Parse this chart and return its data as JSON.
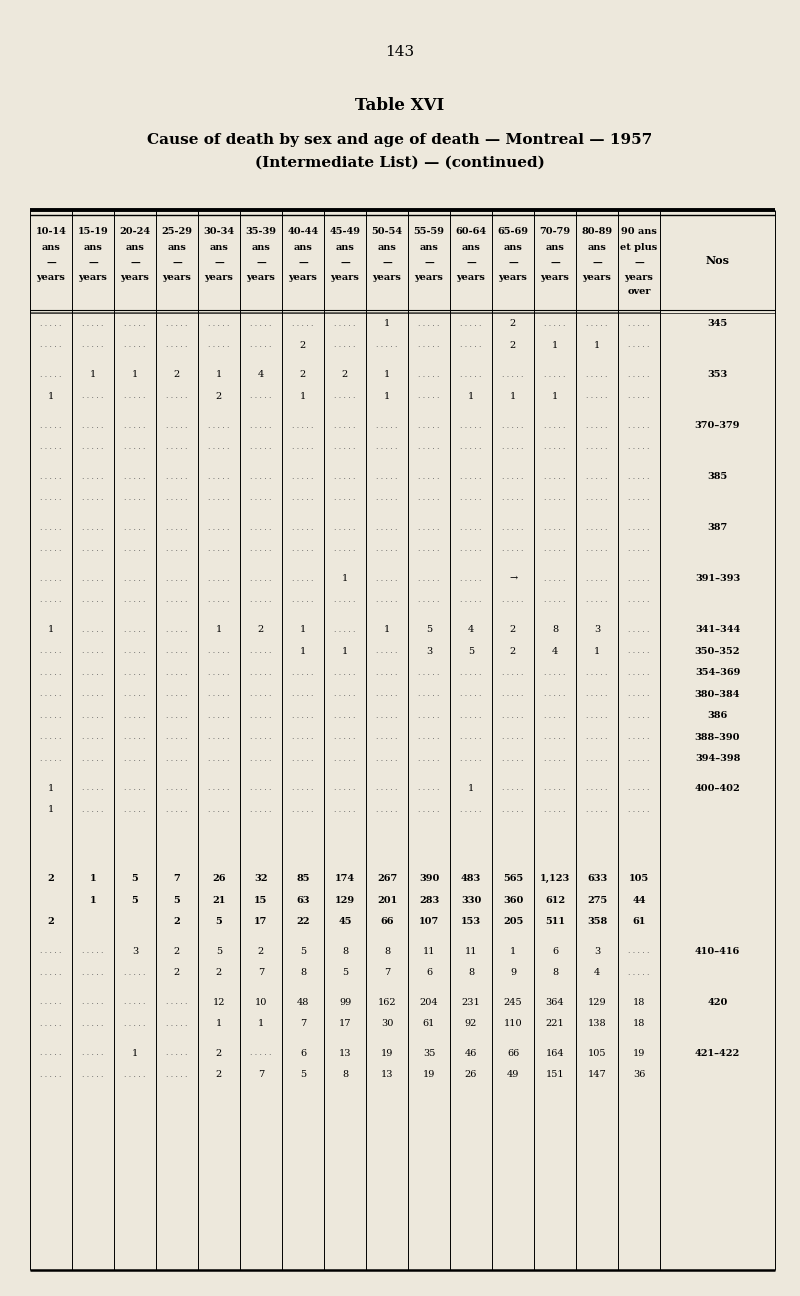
{
  "page_number": "143",
  "title1": "Table XVI",
  "title2": "Cause of death by sex and age of death — Montreal — 1957",
  "title3": "(Intermediate List) — (continued)",
  "bg_color": "#ede8dc",
  "col_headers": [
    [
      "10-14",
      "ans",
      "—",
      "years"
    ],
    [
      "15-19",
      "ans",
      "—",
      "years"
    ],
    [
      "20-24",
      "ans",
      "—",
      "years"
    ],
    [
      "25-29",
      "ans",
      "—",
      "years"
    ],
    [
      "30-34",
      "ans",
      "—",
      "years"
    ],
    [
      "35-39",
      "ans",
      "—",
      "years"
    ],
    [
      "40-44",
      "ans",
      "—",
      "years"
    ],
    [
      "45-49",
      "ans",
      "—",
      "years"
    ],
    [
      "50-54",
      "ans",
      "—",
      "years"
    ],
    [
      "55-59",
      "ans",
      "—",
      "years"
    ],
    [
      "60-64",
      "ans",
      "—",
      "years"
    ],
    [
      "65-69",
      "ans",
      "—",
      "years"
    ],
    [
      "70-79",
      "ans",
      "—",
      "years"
    ],
    [
      "80-89",
      "ans",
      "—",
      "years"
    ],
    [
      "90 ans",
      "et plus",
      "—",
      "years",
      "over"
    ]
  ],
  "rows": [
    {
      "d": [
        "",
        "",
        "",
        "",
        "",
        "",
        "",
        "",
        "1",
        "",
        "",
        "2",
        "",
        "",
        ""
      ],
      "nos": "345",
      "dots": true
    },
    {
      "d": [
        "",
        "",
        "",
        "",
        "",
        "",
        "2",
        "",
        "",
        "",
        "",
        "2",
        "1",
        "1",
        ""
      ],
      "nos": "",
      "dots": true
    },
    {
      "d": [
        "",
        "1",
        "1",
        "2",
        "1",
        "4",
        "2",
        "2",
        "1",
        "",
        "",
        "",
        "",
        "",
        ""
      ],
      "nos": "353",
      "dots": true
    },
    {
      "d": [
        "1",
        "",
        "",
        "",
        "2",
        "",
        "1",
        "",
        "1",
        "",
        "1",
        "1",
        "1",
        "",
        ""
      ],
      "nos": "",
      "dots": true
    },
    {
      "d": [
        "",
        "",
        "",
        "",
        "",
        "",
        "",
        "",
        "",
        "",
        "",
        "",
        "",
        "",
        ""
      ],
      "nos": "370–379",
      "dots": true
    },
    {
      "d": [
        "",
        "",
        "",
        "",
        "",
        "",
        "",
        "",
        "",
        "",
        "",
        "",
        "",
        "",
        ""
      ],
      "nos": "",
      "dots": true
    },
    {
      "d": [
        "",
        "",
        "",
        "",
        "",
        "",
        "",
        "",
        "",
        "",
        "",
        "",
        "",
        "",
        ""
      ],
      "nos": "385",
      "dots": true
    },
    {
      "d": [
        "",
        "",
        "",
        "",
        "",
        "",
        "",
        "",
        "",
        "",
        "",
        "",
        "",
        "",
        ""
      ],
      "nos": "",
      "dots": true
    },
    {
      "d": [
        "",
        "",
        "",
        "",
        "",
        "",
        "",
        "",
        "",
        "",
        "",
        "",
        "",
        "",
        ""
      ],
      "nos": "387",
      "dots": true
    },
    {
      "d": [
        "",
        "",
        "",
        "",
        "",
        "",
        "",
        "",
        "",
        "",
        "",
        "",
        "",
        "",
        ""
      ],
      "nos": "",
      "dots": true
    },
    {
      "d": [
        "",
        "",
        "",
        "",
        "",
        "",
        "",
        "1",
        "",
        "",
        "",
        "→",
        "",
        "",
        ""
      ],
      "nos": "391–393",
      "dots": true
    },
    {
      "d": [
        "",
        "",
        "",
        "",
        "",
        "",
        "",
        "",
        "",
        "",
        "",
        "",
        "",
        "",
        ""
      ],
      "nos": "",
      "dots": true
    },
    {
      "d": [
        "1",
        "",
        "",
        "",
        "1",
        "2",
        "1",
        "",
        "1",
        "5",
        "4",
        "2",
        "8",
        "3",
        ""
      ],
      "nos": "341–344",
      "dots": true
    },
    {
      "d": [
        "",
        "",
        "",
        "",
        "",
        "",
        "1",
        "1",
        "",
        "3",
        "5",
        "2",
        "4",
        "1",
        ""
      ],
      "nos": "350–352",
      "dots": true
    },
    {
      "d": [
        "",
        "",
        "",
        "",
        "",
        "",
        "",
        "",
        "",
        "",
        "",
        "",
        "",
        "",
        ""
      ],
      "nos": "354–369",
      "dots": true
    },
    {
      "d": [
        "",
        "",
        "",
        "",
        "",
        "",
        "",
        "",
        "",
        "",
        "",
        "",
        "",
        "",
        ""
      ],
      "nos": "380–384",
      "dots": true
    },
    {
      "d": [
        "",
        "",
        "",
        "",
        "",
        "",
        "",
        "",
        "",
        "",
        "",
        "",
        "",
        "",
        ""
      ],
      "nos": "386",
      "dots": true
    },
    {
      "d": [
        "",
        "",
        "",
        "",
        "",
        "",
        "",
        "",
        "",
        "",
        "",
        "",
        "",
        "",
        ""
      ],
      "nos": "388–390",
      "dots": true
    },
    {
      "d": [
        "",
        "",
        "",
        "",
        "",
        "",
        "",
        "",
        "",
        "",
        "",
        "",
        "",
        "",
        ""
      ],
      "nos": "394–398",
      "dots": true
    },
    {
      "d": [
        "1",
        "",
        "",
        "",
        "",
        "",
        "",
        "",
        "",
        "",
        "1",
        "",
        "",
        "",
        ""
      ],
      "nos": "400–402",
      "dots": true
    },
    {
      "d": [
        "1",
        "",
        "",
        "",
        "",
        "",
        "",
        "",
        "",
        "",
        "",
        "",
        "",
        "",
        ""
      ],
      "nos": "",
      "dots": true
    },
    {
      "d": [
        "",
        "",
        "",
        "",
        "",
        "",
        "",
        "",
        "",
        "",
        "",
        "",
        "",
        "",
        ""
      ],
      "nos": "",
      "dots": false
    },
    {
      "d": [
        "2",
        "1",
        "5",
        "7",
        "26",
        "32",
        "85",
        "174",
        "267",
        "390",
        "483",
        "565",
        "1,123",
        "633",
        "105"
      ],
      "nos": "",
      "dots": false
    },
    {
      "d": [
        "",
        "1",
        "5",
        "5",
        "21",
        "15",
        "63",
        "129",
        "201",
        "283",
        "330",
        "360",
        "612",
        "275",
        "44"
      ],
      "nos": "",
      "dots": false
    },
    {
      "d": [
        "2",
        "",
        "",
        "2",
        "5",
        "17",
        "22",
        "45",
        "66",
        "107",
        "153",
        "205",
        "511",
        "358",
        "61"
      ],
      "nos": "",
      "dots": false
    },
    {
      "d": [
        "",
        "",
        "3",
        "2",
        "5",
        "2",
        "5",
        "8",
        "8",
        "11",
        "11",
        "1",
        "6",
        "3",
        ""
      ],
      "nos": "410–416",
      "dots": true
    },
    {
      "d": [
        "",
        "",
        "",
        "2",
        "2",
        "7",
        "8",
        "5",
        "7",
        "6",
        "8",
        "9",
        "8",
        "4",
        ""
      ],
      "nos": "",
      "dots": true
    },
    {
      "d": [
        "",
        "",
        "",
        "",
        "12",
        "10",
        "48",
        "99",
        "162",
        "204",
        "231",
        "245",
        "364",
        "129",
        "18"
      ],
      "nos": "420",
      "dots": true
    },
    {
      "d": [
        "",
        "",
        "",
        "",
        "1",
        "1",
        "7",
        "17",
        "30",
        "61",
        "92",
        "110",
        "221",
        "138",
        "18"
      ],
      "nos": "",
      "dots": true
    },
    {
      "d": [
        "",
        "",
        "1",
        "",
        "2",
        "",
        "6",
        "13",
        "19",
        "35",
        "46",
        "66",
        "164",
        "105",
        "19"
      ],
      "nos": "421–422",
      "dots": true
    },
    {
      "d": [
        "",
        "",
        "",
        "",
        "2",
        "7",
        "5",
        "8",
        "13",
        "19",
        "26",
        "49",
        "151",
        "147",
        "36"
      ],
      "nos": "",
      "dots": true
    }
  ]
}
